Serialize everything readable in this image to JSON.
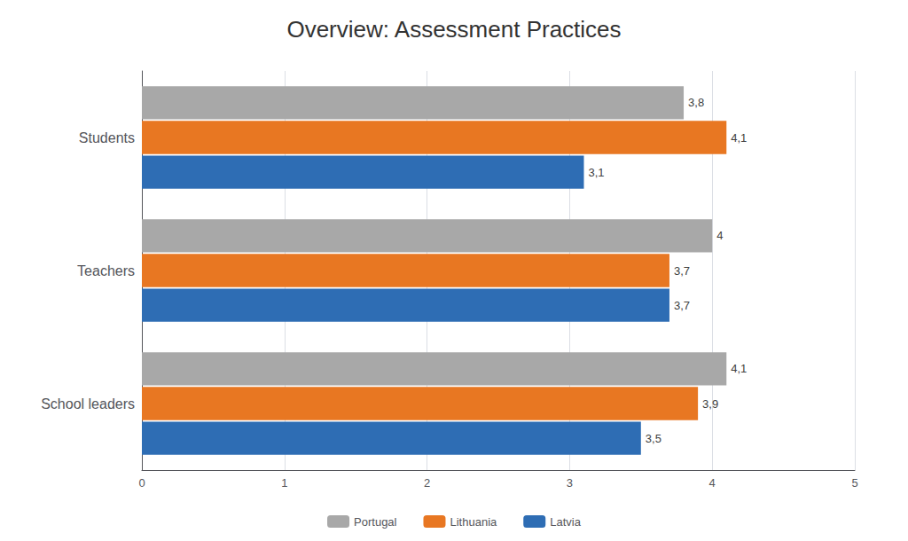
{
  "chart_data": {
    "type": "bar",
    "orientation": "horizontal",
    "title": "Overview: Assessment Practices",
    "categories": [
      "Students",
      "Teachers",
      "School leaders"
    ],
    "series": [
      {
        "name": "Portugal",
        "color": "#A8A8A8",
        "values": [
          3.8,
          4.0,
          4.1
        ],
        "value_labels": [
          "3,8",
          "4",
          "4,1"
        ]
      },
      {
        "name": "Lithuania",
        "color": "#E87722",
        "values": [
          4.1,
          3.7,
          3.9
        ],
        "value_labels": [
          "4,1",
          "3,7",
          "3,9"
        ]
      },
      {
        "name": "Latvia",
        "color": "#2E6DB4",
        "values": [
          3.1,
          3.7,
          3.5
        ],
        "value_labels": [
          "3,1",
          "3,7",
          "3,5"
        ]
      }
    ],
    "xlim": [
      0,
      5
    ],
    "xticks": [
      0,
      1,
      2,
      3,
      4,
      5
    ],
    "grid": true,
    "legend": "bottom",
    "data_labels": true
  }
}
